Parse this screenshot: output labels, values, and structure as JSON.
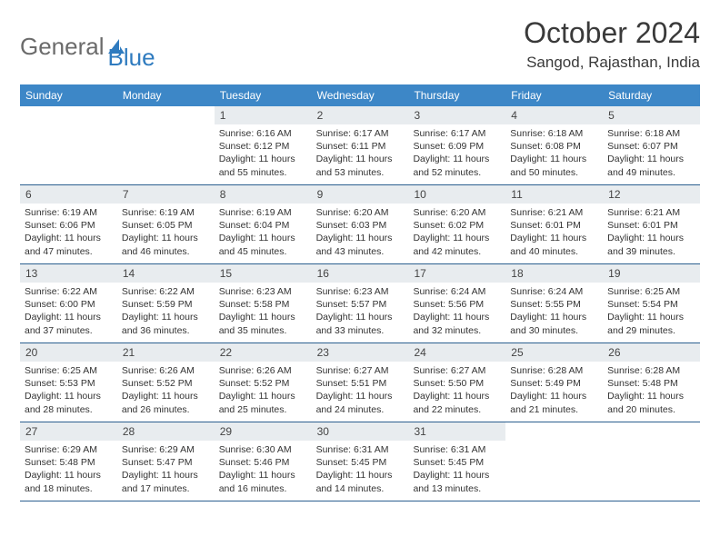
{
  "logo": {
    "text_gray": "General",
    "text_blue": "Blue"
  },
  "title": "October 2024",
  "location": "Sangod, Rajasthan, India",
  "colors": {
    "header_bg": "#3d87c7",
    "header_text": "#ffffff",
    "daynum_bg": "#e8ecef",
    "row_border": "#2b5f8f",
    "title_color": "#3a3a3a",
    "logo_gray": "#6b6b6b",
    "logo_blue": "#2f7bbf"
  },
  "day_headers": [
    "Sunday",
    "Monday",
    "Tuesday",
    "Wednesday",
    "Thursday",
    "Friday",
    "Saturday"
  ],
  "weeks": [
    [
      {
        "num": "",
        "sunrise": "",
        "sunset": "",
        "daylight": ""
      },
      {
        "num": "",
        "sunrise": "",
        "sunset": "",
        "daylight": ""
      },
      {
        "num": "1",
        "sunrise": "Sunrise: 6:16 AM",
        "sunset": "Sunset: 6:12 PM",
        "daylight": "Daylight: 11 hours and 55 minutes."
      },
      {
        "num": "2",
        "sunrise": "Sunrise: 6:17 AM",
        "sunset": "Sunset: 6:11 PM",
        "daylight": "Daylight: 11 hours and 53 minutes."
      },
      {
        "num": "3",
        "sunrise": "Sunrise: 6:17 AM",
        "sunset": "Sunset: 6:09 PM",
        "daylight": "Daylight: 11 hours and 52 minutes."
      },
      {
        "num": "4",
        "sunrise": "Sunrise: 6:18 AM",
        "sunset": "Sunset: 6:08 PM",
        "daylight": "Daylight: 11 hours and 50 minutes."
      },
      {
        "num": "5",
        "sunrise": "Sunrise: 6:18 AM",
        "sunset": "Sunset: 6:07 PM",
        "daylight": "Daylight: 11 hours and 49 minutes."
      }
    ],
    [
      {
        "num": "6",
        "sunrise": "Sunrise: 6:19 AM",
        "sunset": "Sunset: 6:06 PM",
        "daylight": "Daylight: 11 hours and 47 minutes."
      },
      {
        "num": "7",
        "sunrise": "Sunrise: 6:19 AM",
        "sunset": "Sunset: 6:05 PM",
        "daylight": "Daylight: 11 hours and 46 minutes."
      },
      {
        "num": "8",
        "sunrise": "Sunrise: 6:19 AM",
        "sunset": "Sunset: 6:04 PM",
        "daylight": "Daylight: 11 hours and 45 minutes."
      },
      {
        "num": "9",
        "sunrise": "Sunrise: 6:20 AM",
        "sunset": "Sunset: 6:03 PM",
        "daylight": "Daylight: 11 hours and 43 minutes."
      },
      {
        "num": "10",
        "sunrise": "Sunrise: 6:20 AM",
        "sunset": "Sunset: 6:02 PM",
        "daylight": "Daylight: 11 hours and 42 minutes."
      },
      {
        "num": "11",
        "sunrise": "Sunrise: 6:21 AM",
        "sunset": "Sunset: 6:01 PM",
        "daylight": "Daylight: 11 hours and 40 minutes."
      },
      {
        "num": "12",
        "sunrise": "Sunrise: 6:21 AM",
        "sunset": "Sunset: 6:01 PM",
        "daylight": "Daylight: 11 hours and 39 minutes."
      }
    ],
    [
      {
        "num": "13",
        "sunrise": "Sunrise: 6:22 AM",
        "sunset": "Sunset: 6:00 PM",
        "daylight": "Daylight: 11 hours and 37 minutes."
      },
      {
        "num": "14",
        "sunrise": "Sunrise: 6:22 AM",
        "sunset": "Sunset: 5:59 PM",
        "daylight": "Daylight: 11 hours and 36 minutes."
      },
      {
        "num": "15",
        "sunrise": "Sunrise: 6:23 AM",
        "sunset": "Sunset: 5:58 PM",
        "daylight": "Daylight: 11 hours and 35 minutes."
      },
      {
        "num": "16",
        "sunrise": "Sunrise: 6:23 AM",
        "sunset": "Sunset: 5:57 PM",
        "daylight": "Daylight: 11 hours and 33 minutes."
      },
      {
        "num": "17",
        "sunrise": "Sunrise: 6:24 AM",
        "sunset": "Sunset: 5:56 PM",
        "daylight": "Daylight: 11 hours and 32 minutes."
      },
      {
        "num": "18",
        "sunrise": "Sunrise: 6:24 AM",
        "sunset": "Sunset: 5:55 PM",
        "daylight": "Daylight: 11 hours and 30 minutes."
      },
      {
        "num": "19",
        "sunrise": "Sunrise: 6:25 AM",
        "sunset": "Sunset: 5:54 PM",
        "daylight": "Daylight: 11 hours and 29 minutes."
      }
    ],
    [
      {
        "num": "20",
        "sunrise": "Sunrise: 6:25 AM",
        "sunset": "Sunset: 5:53 PM",
        "daylight": "Daylight: 11 hours and 28 minutes."
      },
      {
        "num": "21",
        "sunrise": "Sunrise: 6:26 AM",
        "sunset": "Sunset: 5:52 PM",
        "daylight": "Daylight: 11 hours and 26 minutes."
      },
      {
        "num": "22",
        "sunrise": "Sunrise: 6:26 AM",
        "sunset": "Sunset: 5:52 PM",
        "daylight": "Daylight: 11 hours and 25 minutes."
      },
      {
        "num": "23",
        "sunrise": "Sunrise: 6:27 AM",
        "sunset": "Sunset: 5:51 PM",
        "daylight": "Daylight: 11 hours and 24 minutes."
      },
      {
        "num": "24",
        "sunrise": "Sunrise: 6:27 AM",
        "sunset": "Sunset: 5:50 PM",
        "daylight": "Daylight: 11 hours and 22 minutes."
      },
      {
        "num": "25",
        "sunrise": "Sunrise: 6:28 AM",
        "sunset": "Sunset: 5:49 PM",
        "daylight": "Daylight: 11 hours and 21 minutes."
      },
      {
        "num": "26",
        "sunrise": "Sunrise: 6:28 AM",
        "sunset": "Sunset: 5:48 PM",
        "daylight": "Daylight: 11 hours and 20 minutes."
      }
    ],
    [
      {
        "num": "27",
        "sunrise": "Sunrise: 6:29 AM",
        "sunset": "Sunset: 5:48 PM",
        "daylight": "Daylight: 11 hours and 18 minutes."
      },
      {
        "num": "28",
        "sunrise": "Sunrise: 6:29 AM",
        "sunset": "Sunset: 5:47 PM",
        "daylight": "Daylight: 11 hours and 17 minutes."
      },
      {
        "num": "29",
        "sunrise": "Sunrise: 6:30 AM",
        "sunset": "Sunset: 5:46 PM",
        "daylight": "Daylight: 11 hours and 16 minutes."
      },
      {
        "num": "30",
        "sunrise": "Sunrise: 6:31 AM",
        "sunset": "Sunset: 5:45 PM",
        "daylight": "Daylight: 11 hours and 14 minutes."
      },
      {
        "num": "31",
        "sunrise": "Sunrise: 6:31 AM",
        "sunset": "Sunset: 5:45 PM",
        "daylight": "Daylight: 11 hours and 13 minutes."
      },
      {
        "num": "",
        "sunrise": "",
        "sunset": "",
        "daylight": ""
      },
      {
        "num": "",
        "sunrise": "",
        "sunset": "",
        "daylight": ""
      }
    ]
  ]
}
